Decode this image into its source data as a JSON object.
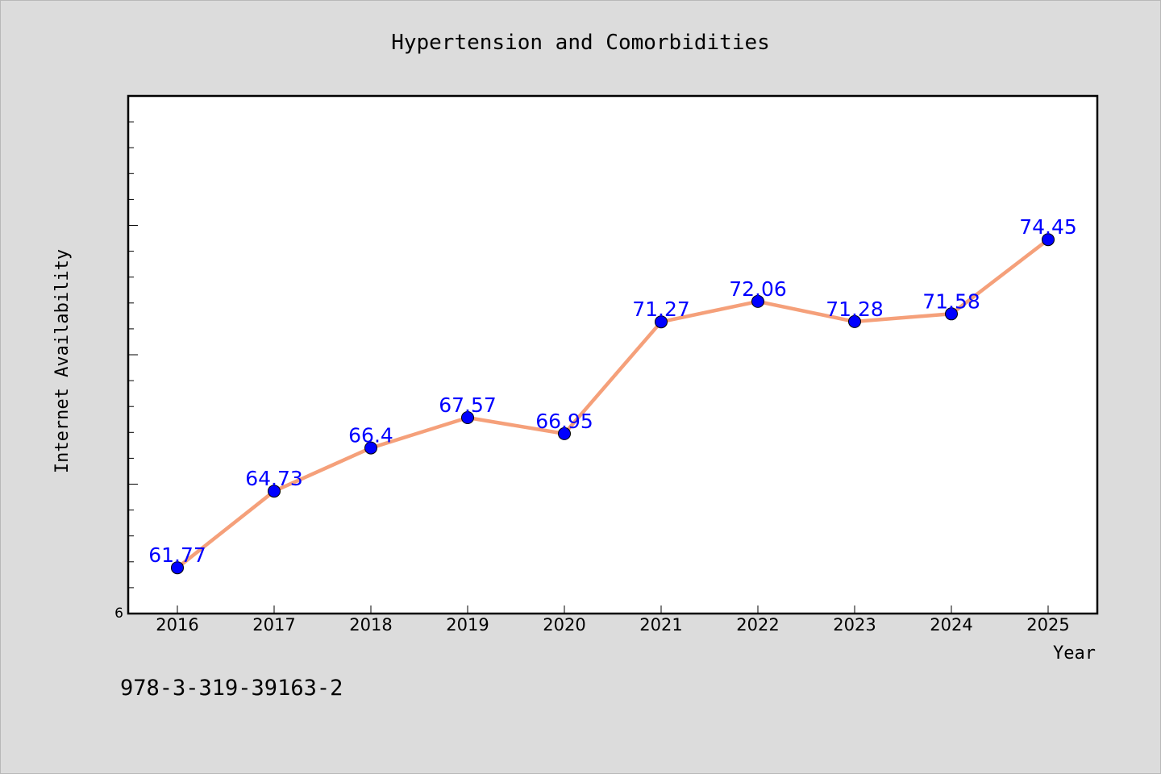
{
  "chart_data": {
    "type": "line",
    "title": "Hypertension and Comorbidities",
    "xlabel": "Year",
    "ylabel": "Internet Availability",
    "categories": [
      "2016",
      "2017",
      "2018",
      "2019",
      "2020",
      "2021",
      "2022",
      "2023",
      "2024",
      "2025"
    ],
    "values": [
      61.77,
      64.73,
      66.4,
      67.57,
      66.95,
      71.27,
      72.06,
      71.28,
      71.58,
      74.45
    ],
    "data_labels": [
      "61.77",
      "64.73",
      "66.4",
      "67.57",
      "66.95",
      "71.27",
      "72.06",
      "71.28",
      "71.58",
      "74.45"
    ],
    "ylim": [
      60,
      80
    ],
    "y_tick_labels": [
      "6"
    ],
    "grid": false,
    "line_color": "#f5a07a",
    "marker_color": "#0000ff",
    "label_color": "#0000ff"
  },
  "footer": {
    "code": "978-3-319-39163-2"
  }
}
